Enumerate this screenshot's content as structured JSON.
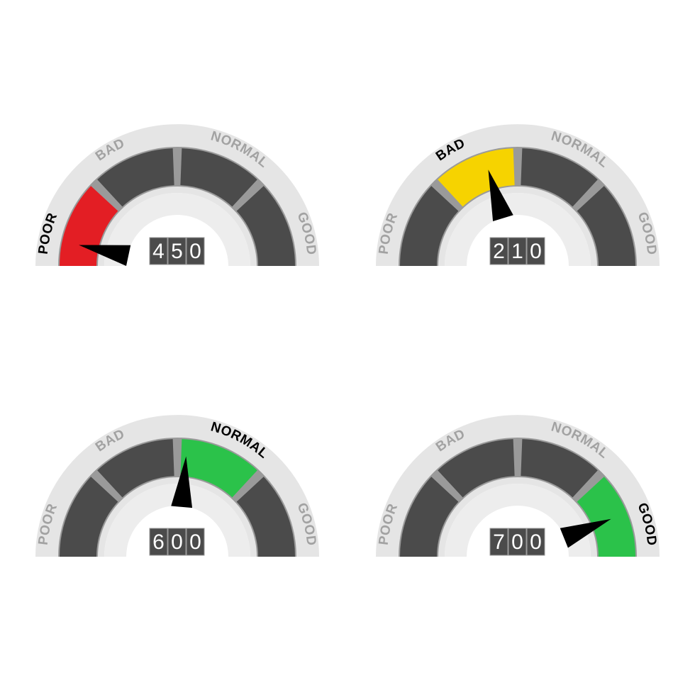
{
  "type": "gauge-set",
  "background_color": "#ffffff",
  "gauge": {
    "label_fontsize": 19,
    "value_fontsize": 30,
    "colors": {
      "outer_ring": "#e5e5e5",
      "inner_disc": "#ededed",
      "segment_inactive": "#4b4b4b",
      "segment_gap": "#9a9a9a",
      "label_inactive": "#a2a2a2",
      "label_active": "#000000",
      "needle": "#000000",
      "value_bg": "#4b4b4b",
      "value_text": "#ffffff",
      "value_border": "#9a9a9a"
    },
    "segments": [
      {
        "key": "poor",
        "label": "POOR",
        "color": "#e31e24",
        "label_angle": 166
      },
      {
        "key": "bad",
        "label": "BAD",
        "color": "#f6d300",
        "label_angle": 120
      },
      {
        "key": "normal",
        "label": "NORMAL",
        "color": "#2bc24a",
        "label_angle": 62
      },
      {
        "key": "good",
        "label": "GOOD",
        "color": "#2bc24a",
        "label_angle": 14
      }
    ]
  },
  "gauges": [
    {
      "id": "g1",
      "value": "450",
      "active_segment": "poor",
      "needle_angle": 168
    },
    {
      "id": "g2",
      "value": "210",
      "active_segment": "bad",
      "needle_angle": 107
    },
    {
      "id": "g3",
      "value": "600",
      "active_segment": "normal",
      "needle_angle": 85
    },
    {
      "id": "g4",
      "value": "700",
      "active_segment": "good",
      "needle_angle": 22
    }
  ]
}
